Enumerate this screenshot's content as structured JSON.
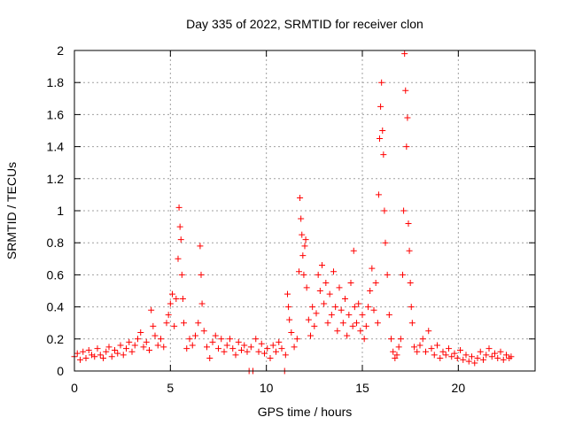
{
  "chart_data": {
    "type": "scatter",
    "title": "Day 335 of 2022, SRMTID for receiver clon",
    "xlabel": "GPS time / hours",
    "ylabel": "SRMTID / TECUs",
    "xlim": [
      0,
      24
    ],
    "ylim": [
      0,
      2
    ],
    "x_ticks": [
      0,
      5,
      10,
      15,
      20
    ],
    "y_ticks": [
      0,
      0.2,
      0.4,
      0.6,
      0.8,
      1,
      1.2,
      1.4,
      1.6,
      1.8,
      2
    ],
    "x_tick_labels": [
      "0",
      "5",
      "10",
      "15",
      "20"
    ],
    "y_tick_labels": [
      "0",
      "0.2",
      "0.4",
      "0.6",
      "0.8",
      "1",
      "1.2",
      "1.4",
      "1.6",
      "1.8",
      "2"
    ],
    "grid": true,
    "marker": "+",
    "color": "#ff0000",
    "series": [
      {
        "name": "SRMTID",
        "points": [
          [
            0.0,
            0.09
          ],
          [
            0.15,
            0.11
          ],
          [
            0.3,
            0.07
          ],
          [
            0.45,
            0.12
          ],
          [
            0.6,
            0.08
          ],
          [
            0.75,
            0.13
          ],
          [
            0.9,
            0.1
          ],
          [
            1.05,
            0.09
          ],
          [
            1.2,
            0.14
          ],
          [
            1.35,
            0.1
          ],
          [
            1.5,
            0.08
          ],
          [
            1.65,
            0.12
          ],
          [
            1.8,
            0.15
          ],
          [
            1.95,
            0.09
          ],
          [
            2.1,
            0.13
          ],
          [
            2.25,
            0.11
          ],
          [
            2.4,
            0.16
          ],
          [
            2.55,
            0.1
          ],
          [
            2.7,
            0.14
          ],
          [
            2.85,
            0.18
          ],
          [
            3.0,
            0.12
          ],
          [
            3.15,
            0.16
          ],
          [
            3.3,
            0.2
          ],
          [
            3.45,
            0.24
          ],
          [
            3.6,
            0.15
          ],
          [
            3.75,
            0.18
          ],
          [
            3.9,
            0.13
          ],
          [
            4.0,
            0.38
          ],
          [
            4.1,
            0.28
          ],
          [
            4.2,
            0.22
          ],
          [
            4.35,
            0.16
          ],
          [
            4.5,
            0.2
          ],
          [
            4.65,
            0.15
          ],
          [
            4.8,
            0.3
          ],
          [
            4.9,
            0.35
          ],
          [
            5.0,
            0.42
          ],
          [
            5.1,
            0.48
          ],
          [
            5.2,
            0.28
          ],
          [
            5.3,
            0.45
          ],
          [
            5.4,
            0.7
          ],
          [
            5.45,
            1.02
          ],
          [
            5.5,
            0.9
          ],
          [
            5.55,
            0.82
          ],
          [
            5.6,
            0.6
          ],
          [
            5.65,
            0.45
          ],
          [
            5.7,
            0.3
          ],
          [
            5.85,
            0.14
          ],
          [
            6.0,
            0.2
          ],
          [
            6.15,
            0.16
          ],
          [
            6.3,
            0.22
          ],
          [
            6.45,
            0.3
          ],
          [
            6.55,
            0.78
          ],
          [
            6.6,
            0.6
          ],
          [
            6.65,
            0.42
          ],
          [
            6.75,
            0.25
          ],
          [
            6.9,
            0.15
          ],
          [
            7.05,
            0.08
          ],
          [
            7.2,
            0.18
          ],
          [
            7.35,
            0.22
          ],
          [
            7.5,
            0.14
          ],
          [
            7.65,
            0.2
          ],
          [
            7.8,
            0.12
          ],
          [
            7.95,
            0.16
          ],
          [
            8.1,
            0.2
          ],
          [
            8.25,
            0.14
          ],
          [
            8.4,
            0.1
          ],
          [
            8.55,
            0.18
          ],
          [
            8.7,
            0.13
          ],
          [
            8.85,
            0.16
          ],
          [
            9.0,
            0.12
          ],
          [
            9.1,
            0.0
          ],
          [
            9.3,
            0.0
          ],
          [
            9.2,
            0.15
          ],
          [
            9.45,
            0.2
          ],
          [
            9.6,
            0.12
          ],
          [
            9.75,
            0.17
          ],
          [
            9.9,
            0.11
          ],
          [
            10.05,
            0.14
          ],
          [
            10.2,
            0.08
          ],
          [
            10.35,
            0.16
          ],
          [
            10.5,
            0.12
          ],
          [
            10.65,
            0.18
          ],
          [
            10.8,
            0.14
          ],
          [
            10.95,
            0.0
          ],
          [
            11.0,
            0.1
          ],
          [
            11.1,
            0.48
          ],
          [
            11.15,
            0.4
          ],
          [
            11.2,
            0.32
          ],
          [
            11.3,
            0.24
          ],
          [
            11.45,
            0.15
          ],
          [
            11.6,
            0.2
          ],
          [
            11.7,
            0.62
          ],
          [
            11.75,
            1.08
          ],
          [
            11.8,
            0.95
          ],
          [
            11.85,
            0.85
          ],
          [
            11.9,
            0.72
          ],
          [
            11.95,
            0.6
          ],
          [
            12.0,
            0.78
          ],
          [
            12.05,
            0.82
          ],
          [
            12.1,
            0.52
          ],
          [
            12.2,
            0.32
          ],
          [
            12.3,
            0.22
          ],
          [
            12.4,
            0.4
          ],
          [
            12.5,
            0.28
          ],
          [
            12.6,
            0.36
          ],
          [
            12.7,
            0.6
          ],
          [
            12.8,
            0.5
          ],
          [
            12.9,
            0.66
          ],
          [
            13.0,
            0.42
          ],
          [
            13.1,
            0.55
          ],
          [
            13.2,
            0.3
          ],
          [
            13.3,
            0.48
          ],
          [
            13.4,
            0.35
          ],
          [
            13.5,
            0.62
          ],
          [
            13.6,
            0.4
          ],
          [
            13.7,
            0.25
          ],
          [
            13.8,
            0.52
          ],
          [
            13.9,
            0.38
          ],
          [
            14.0,
            0.3
          ],
          [
            14.1,
            0.45
          ],
          [
            14.2,
            0.22
          ],
          [
            14.3,
            0.35
          ],
          [
            14.4,
            0.55
          ],
          [
            14.5,
            0.28
          ],
          [
            14.55,
            0.75
          ],
          [
            14.6,
            0.4
          ],
          [
            14.7,
            0.3
          ],
          [
            14.8,
            0.42
          ],
          [
            14.9,
            0.25
          ],
          [
            15.0,
            0.35
          ],
          [
            15.1,
            0.2
          ],
          [
            15.2,
            0.28
          ],
          [
            15.3,
            0.4
          ],
          [
            15.4,
            0.5
          ],
          [
            15.5,
            0.64
          ],
          [
            15.6,
            0.38
          ],
          [
            15.7,
            0.55
          ],
          [
            15.8,
            0.3
          ],
          [
            15.85,
            1.1
          ],
          [
            15.9,
            1.45
          ],
          [
            15.95,
            1.65
          ],
          [
            16.0,
            1.8
          ],
          [
            16.05,
            1.5
          ],
          [
            16.1,
            1.35
          ],
          [
            16.15,
            1.0
          ],
          [
            16.2,
            0.8
          ],
          [
            16.3,
            0.6
          ],
          [
            16.4,
            0.35
          ],
          [
            16.5,
            0.2
          ],
          [
            16.6,
            0.12
          ],
          [
            16.7,
            0.08
          ],
          [
            16.8,
            0.1
          ],
          [
            16.9,
            0.15
          ],
          [
            17.0,
            0.2
          ],
          [
            17.1,
            0.6
          ],
          [
            17.15,
            1.0
          ],
          [
            17.2,
            1.98
          ],
          [
            17.25,
            1.75
          ],
          [
            17.3,
            1.4
          ],
          [
            17.35,
            1.58
          ],
          [
            17.4,
            0.92
          ],
          [
            17.45,
            0.75
          ],
          [
            17.5,
            0.55
          ],
          [
            17.55,
            0.4
          ],
          [
            17.6,
            0.3
          ],
          [
            17.7,
            0.15
          ],
          [
            17.85,
            0.12
          ],
          [
            18.0,
            0.16
          ],
          [
            18.15,
            0.2
          ],
          [
            18.3,
            0.12
          ],
          [
            18.45,
            0.25
          ],
          [
            18.6,
            0.14
          ],
          [
            18.75,
            0.1
          ],
          [
            18.9,
            0.16
          ],
          [
            19.05,
            0.08
          ],
          [
            19.2,
            0.12
          ],
          [
            19.35,
            0.1
          ],
          [
            19.5,
            0.14
          ],
          [
            19.65,
            0.09
          ],
          [
            19.8,
            0.11
          ],
          [
            19.95,
            0.08
          ],
          [
            20.1,
            0.13
          ],
          [
            20.25,
            0.07
          ],
          [
            20.4,
            0.1
          ],
          [
            20.55,
            0.06
          ],
          [
            20.7,
            0.09
          ],
          [
            20.85,
            0.05
          ],
          [
            21.0,
            0.08
          ],
          [
            21.15,
            0.12
          ],
          [
            21.3,
            0.07
          ],
          [
            21.45,
            0.1
          ],
          [
            21.6,
            0.14
          ],
          [
            21.75,
            0.09
          ],
          [
            21.9,
            0.11
          ],
          [
            22.05,
            0.08
          ],
          [
            22.2,
            0.12
          ],
          [
            22.35,
            0.07
          ],
          [
            22.5,
            0.1
          ],
          [
            22.65,
            0.08
          ],
          [
            22.75,
            0.09
          ]
        ]
      }
    ]
  }
}
